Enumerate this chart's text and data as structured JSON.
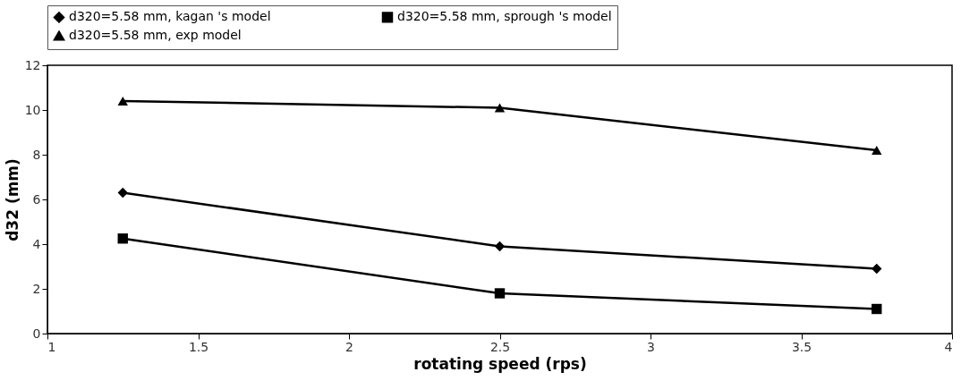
{
  "chart_data": {
    "type": "line",
    "xlabel": "rotating speed (rps)",
    "ylabel": "d32 (mm)",
    "x": [
      1.25,
      2.5,
      3.75
    ],
    "series": [
      {
        "name": "d320=5.58 mm, kagan 's model",
        "color": "#000000",
        "marker": "diamond",
        "values": [
          6.3,
          3.9,
          2.9
        ]
      },
      {
        "name": "d320=5.58 mm, sprough 's model",
        "color": "#000000",
        "marker": "square",
        "values": [
          4.25,
          1.8,
          1.1
        ]
      },
      {
        "name": "d320=5.58 mm, exp model",
        "color": "#000000",
        "marker": "triangle",
        "values": [
          10.4,
          10.1,
          8.2
        ]
      }
    ],
    "xlim": [
      1,
      4
    ],
    "xticks": [
      1,
      1.5,
      2,
      2.5,
      3,
      3.5,
      4
    ],
    "ylim": [
      0,
      12
    ],
    "yticks": [
      0,
      2,
      4,
      6,
      8,
      10,
      12
    ],
    "grid": false,
    "legend": "top",
    "line_style": "solid"
  }
}
